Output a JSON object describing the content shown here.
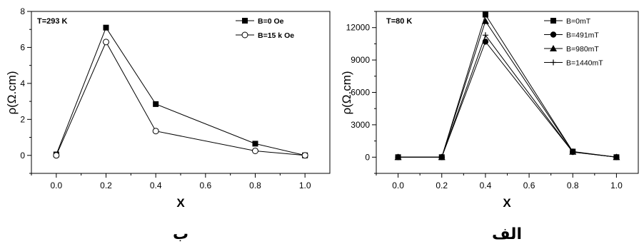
{
  "chart_data": [
    {
      "type": "line",
      "caption": "ب",
      "annotation": "T=293 K",
      "xlabel": "X",
      "ylabel": "ρ(Ω.cm)",
      "xlim": [
        -0.1,
        1.1
      ],
      "ylim": [
        -1,
        8
      ],
      "xticks": [
        "0.0",
        "0.2",
        "0.4",
        "0.6",
        "0.8",
        "1.0"
      ],
      "yticks": [
        "0",
        "2",
        "4",
        "6",
        "8"
      ],
      "legend_position": "top-right",
      "x": [
        0.0,
        0.2,
        0.4,
        0.8,
        1.0
      ],
      "series": [
        {
          "name": "B=0 Oe",
          "marker": "filled-square",
          "values": [
            0.05,
            7.1,
            2.85,
            0.65,
            0.0
          ]
        },
        {
          "name": "B=15 k Oe",
          "marker": "open-circle",
          "values": [
            0.0,
            6.3,
            1.35,
            0.25,
            0.0
          ]
        }
      ]
    },
    {
      "type": "line",
      "caption": "الف",
      "annotation": "T=80 K",
      "xlabel": "X",
      "ylabel": "ρ(Ω.cm)",
      "xlim": [
        -0.1,
        1.1
      ],
      "ylim": [
        -1500,
        13500
      ],
      "xticks": [
        "0.0",
        "0.2",
        "0.4",
        "0.6",
        "0.8",
        "1.0"
      ],
      "yticks": [
        "0",
        "3000",
        "6000",
        "9000",
        "12000"
      ],
      "legend_position": "top-right",
      "x": [
        0.0,
        0.2,
        0.4,
        0.8,
        1.0
      ],
      "series": [
        {
          "name": "B=0mT",
          "marker": "filled-square",
          "values": [
            0,
            0,
            13200,
            520,
            0
          ]
        },
        {
          "name": "B=491mT",
          "marker": "filled-circle",
          "values": [
            0,
            0,
            10700,
            480,
            0
          ]
        },
        {
          "name": "B=980mT",
          "marker": "filled-triangle",
          "values": [
            0,
            0,
            12600,
            500,
            0
          ]
        },
        {
          "name": "B=1440mT",
          "marker": "plus",
          "values": [
            0,
            0,
            11300,
            470,
            0
          ]
        }
      ]
    }
  ]
}
